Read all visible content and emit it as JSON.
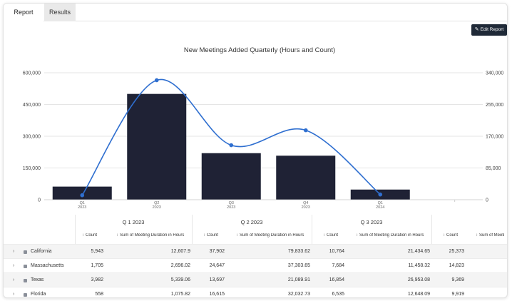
{
  "tabs": [
    {
      "label": "Report",
      "active": true
    },
    {
      "label": "Results",
      "active": false
    }
  ],
  "toolbar": {
    "edit_report_label": "Edit Report",
    "edit_icon": "pencil-icon"
  },
  "chart_data": {
    "type": "bar",
    "title": "New Meetings Added Quarterly (Hours and Count)",
    "categories": [
      {
        "q": "Q1",
        "y": "2023"
      },
      {
        "q": "Q2",
        "y": "2023"
      },
      {
        "q": "Q3",
        "y": "2023"
      },
      {
        "q": "Q4",
        "y": "2023"
      },
      {
        "q": "Q1",
        "y": "2024"
      }
    ],
    "series": [
      {
        "kind": "bar",
        "axis": "left",
        "values": [
          62000,
          500000,
          220000,
          208000,
          48000
        ]
      },
      {
        "kind": "line",
        "axis": "right",
        "values": [
          12000,
          320000,
          146000,
          186000,
          14000
        ]
      }
    ],
    "left_axis": {
      "ticks": [
        "600,000",
        "450,000",
        "300,000",
        "150,000",
        "0"
      ],
      "ylim": [
        0,
        600000
      ]
    },
    "right_axis": {
      "ticks": [
        "340,000",
        "255,000",
        "170,000",
        "85,000",
        "0"
      ],
      "ylim": [
        0,
        340000
      ]
    },
    "colors": {
      "bar": "#1f2235",
      "line": "#2f6fd0"
    }
  },
  "table": {
    "groups": [
      "Q 1 2023",
      "Q 2 2023",
      "Q 3 2023"
    ],
    "columns": [
      "Count",
      "Sum of Meeting Duration in Hours",
      "Count",
      "Sum of Meeting Duration in Hours",
      "Count",
      "Sum of Meeting Duration in Hours",
      "Count",
      "Sum of Meeti"
    ],
    "rows": [
      {
        "name": "California",
        "values": [
          "5,943",
          "12,607.9",
          "37,902",
          "79,833.62",
          "10,764",
          "21,434.65",
          "25,373"
        ]
      },
      {
        "name": "Massachusetts",
        "values": [
          "1,705",
          "2,696.02",
          "24,647",
          "37,303.65",
          "7,684",
          "11,458.32",
          "14,823"
        ]
      },
      {
        "name": "Texas",
        "values": [
          "3,982",
          "5,339.06",
          "13,697",
          "21,089.91",
          "16,854",
          "26,953.08",
          "9,369"
        ]
      },
      {
        "name": "Florida",
        "values": [
          "558",
          "1,075.82",
          "16,615",
          "32,032.73",
          "6,535",
          "12,648.09",
          "9,919"
        ]
      }
    ]
  }
}
